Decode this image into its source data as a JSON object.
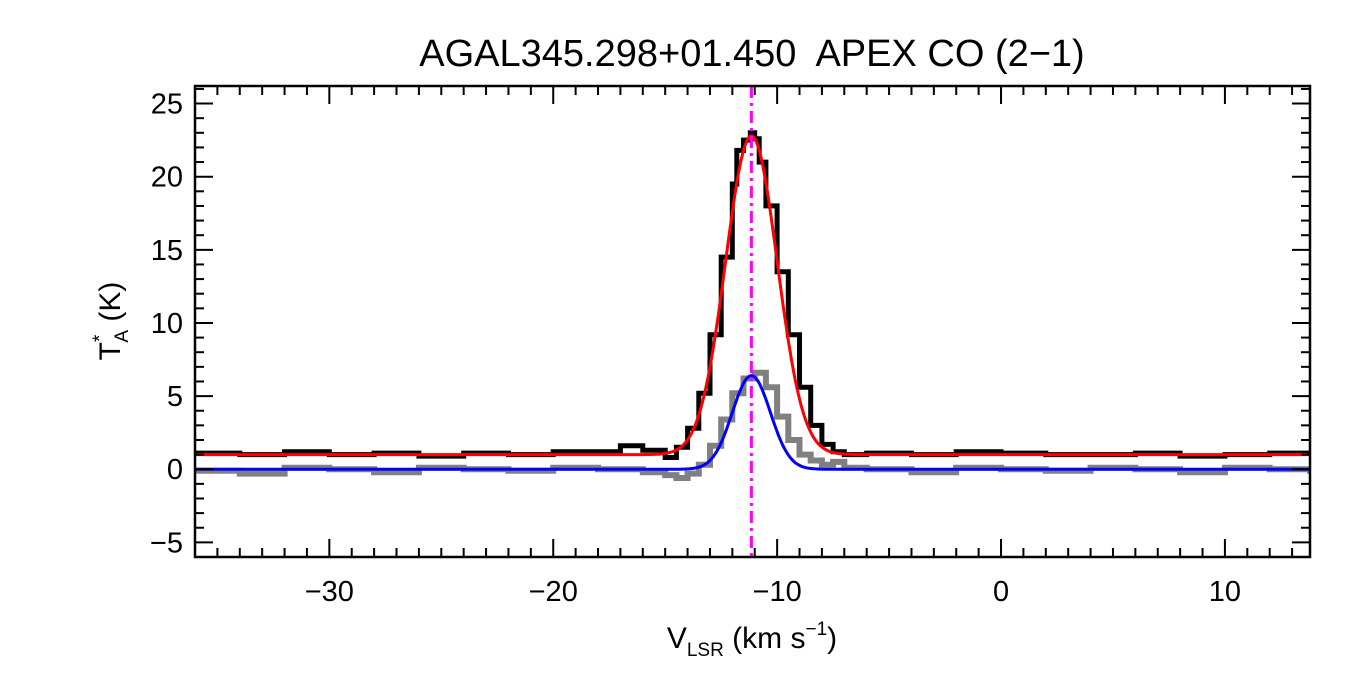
{
  "chart_data": {
    "type": "line",
    "title": "AGAL345.298+01.450  APEX CO (2−1)",
    "xlabel": {
      "main": "V",
      "sub": "LSR",
      "rest": " (km s",
      "sup": "−1",
      "end": ")"
    },
    "ylabel": {
      "main": "T",
      "sup": "*",
      "sub": "A",
      "rest": " (K)"
    },
    "xlim": [
      -36,
      13.8
    ],
    "ylim": [
      -6,
      26.2
    ],
    "x_ticks": [
      -30,
      -20,
      -10,
      0,
      10
    ],
    "x_tick_labels": [
      "−30",
      "−20",
      "−10",
      "0",
      "10"
    ],
    "y_ticks": [
      -5,
      0,
      5,
      10,
      15,
      20,
      25
    ],
    "y_tick_labels": [
      "−5",
      "0",
      "5",
      "10",
      "15",
      "20",
      "25"
    ],
    "grid": false,
    "series": [
      {
        "kind": "step",
        "color": "#000000",
        "x": [
          -36,
          -34,
          -32,
          -30,
          -28,
          -26,
          -24,
          -22,
          -20,
          -18,
          -17,
          -16,
          -15,
          -14.5,
          -14,
          -13.5,
          -13,
          -12.5,
          -12,
          -11.8,
          -11.5,
          -11.2,
          -11,
          -10.8,
          -10.5,
          -10,
          -9.5,
          -9,
          -8.5,
          -8,
          -7.5,
          -7,
          -6,
          -4,
          -2,
          0,
          2,
          4,
          6,
          8,
          10,
          12,
          13.8
        ],
        "y": [
          1.1,
          1.0,
          1.2,
          1.0,
          1.1,
          0.9,
          1.1,
          1.0,
          1.2,
          1.2,
          1.6,
          1.3,
          0.8,
          1.5,
          2.8,
          5.2,
          9.2,
          14.5,
          19.5,
          21.8,
          22.5,
          23.0,
          22.6,
          21.0,
          18.0,
          13.5,
          9.2,
          5.6,
          3.0,
          1.7,
          1.2,
          1.0,
          1.1,
          1.0,
          1.2,
          1.1,
          1.0,
          1.0,
          1.1,
          0.9,
          1.0,
          1.1,
          1.0
        ]
      },
      {
        "kind": "step",
        "color": "#808080",
        "x": [
          -36,
          -34,
          -32,
          -30,
          -28,
          -26,
          -24,
          -22,
          -20,
          -18,
          -16,
          -15,
          -14.5,
          -14,
          -13.5,
          -13,
          -12.5,
          -12,
          -11.5,
          -11,
          -10.5,
          -10,
          -9.5,
          -9,
          -8.5,
          -8,
          -7.5,
          -7,
          -6,
          -4,
          -2,
          0,
          2,
          4,
          6,
          8,
          10,
          12,
          13.8
        ],
        "y": [
          -0.1,
          -0.3,
          0.1,
          0.0,
          -0.2,
          0.1,
          0.0,
          -0.1,
          0.1,
          0.0,
          -0.2,
          -0.4,
          -0.6,
          -0.3,
          0.3,
          1.6,
          3.4,
          5.2,
          6.2,
          6.6,
          5.6,
          3.6,
          2.0,
          1.0,
          0.6,
          0.3,
          0.5,
          0.1,
          0.0,
          -0.2,
          0.1,
          0.0,
          -0.1,
          0.1,
          0.0,
          -0.2,
          0.1,
          0.0,
          -0.3
        ]
      },
      {
        "kind": "gaussian",
        "color": "#ff0000",
        "baseline": 1.0,
        "amplitude": 21.8,
        "center": -11.15,
        "sigma": 1.15
      },
      {
        "kind": "gaussian",
        "color": "#0000ff",
        "baseline": 0.0,
        "amplitude": 6.4,
        "center": -11.15,
        "sigma": 0.85
      }
    ],
    "vline": {
      "x": -11.15,
      "color": "#ff00ff",
      "style": "dash-dot"
    }
  }
}
